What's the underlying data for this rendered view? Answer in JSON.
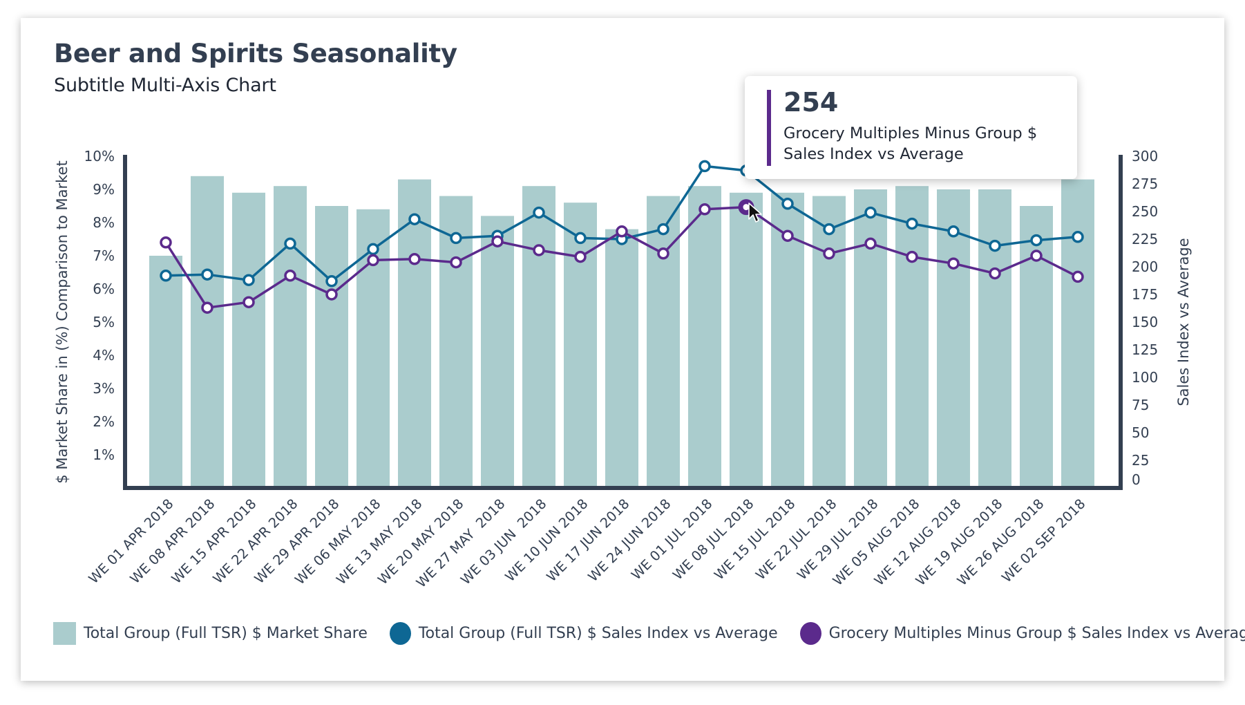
{
  "chart_data": {
    "type": "bar+line",
    "title": "Beer and Spirits Seasonality",
    "subtitle": "Subtitle Multi-Axis Chart",
    "categories": [
      "WE 01 APR 2018",
      "WE 08 APR 2018",
      "WE 15 APR 2018",
      "WE 22 APR 2018",
      "WE 29 APR 2018",
      "WE 06 MAY 2018",
      "WE 13 MAY 2018",
      "WE 20 MAY 2018",
      "WE 27 MAY  2018",
      "WE 03 JUN  2018",
      "WE 10 JUN 2018",
      "WE 17 JUN 2018",
      "WE 24 JUN 2018",
      "WE 01 JUL 2018",
      "WE 08 JUL 2018",
      "WE 15 JUL 2018",
      "WE 22 JUL 2018",
      "WE 29 JUL 2018",
      "WE 05 AUG 2018",
      "WE 12 AUG 2018",
      "WE 19 AUG 2018",
      "WE 26 AUG 2018",
      "WE 02 SEP 2018"
    ],
    "y_left": {
      "label": "$ Market Share in (%) Comparison to Market",
      "range": [
        0,
        10
      ],
      "ticks": [
        1,
        2,
        3,
        4,
        5,
        6,
        7,
        8,
        9,
        10
      ],
      "tick_labels": [
        "1%",
        "2%",
        "3%",
        "4%",
        "5%",
        "6%",
        "7%",
        "8%",
        "9%",
        "10%"
      ]
    },
    "y_right": {
      "label": "Sales Index vs Average",
      "range": [
        0,
        300
      ],
      "ticks": [
        0,
        25,
        50,
        75,
        100,
        125,
        150,
        175,
        200,
        225,
        250,
        275,
        300
      ],
      "tick_labels": [
        "0",
        "25",
        "50",
        "75",
        "100",
        "125",
        "150",
        "175",
        "200",
        "225",
        "250",
        "275",
        "300"
      ]
    },
    "grid": false,
    "legend_position": "bottom-left",
    "series": [
      {
        "name": "Total Group (Full TSR) $ Market Share",
        "type": "bar",
        "axis": "left",
        "color": "#aacccd",
        "values": [
          7.0,
          9.4,
          8.9,
          9.1,
          8.5,
          8.4,
          9.3,
          8.8,
          8.2,
          9.1,
          8.6,
          7.8,
          8.8,
          9.1,
          8.9,
          8.9,
          8.8,
          9.0,
          9.1,
          9.0,
          9.0,
          8.5,
          9.3
        ]
      },
      {
        "name": "Total Group (Full TSR) $ Sales Index vs Average",
        "type": "line",
        "axis": "right",
        "color": "#0e6794",
        "values": [
          192,
          193,
          188,
          221,
          187,
          216,
          243,
          226,
          228,
          249,
          226,
          225,
          234,
          291,
          287,
          257,
          234,
          249,
          239,
          232,
          219,
          224,
          227
        ]
      },
      {
        "name": "Grocery Multiples Minus Group $ Sales Index vs Average",
        "type": "line",
        "axis": "right",
        "color": "#5b2a8c",
        "values": [
          222,
          163,
          168,
          192,
          175,
          206,
          207,
          204,
          223,
          215,
          209,
          232,
          212,
          252,
          254,
          228,
          212,
          221,
          209,
          203,
          194,
          210,
          191
        ]
      }
    ],
    "highlighted_point": {
      "series": 2,
      "category_index": 14
    }
  },
  "tooltip": {
    "value": "254",
    "label": "Grocery Multiples Minus Group $ Sales Index vs Average",
    "color": "#5b2a8c"
  },
  "colors": {
    "axis": "#333f51",
    "text": "#333f51"
  }
}
